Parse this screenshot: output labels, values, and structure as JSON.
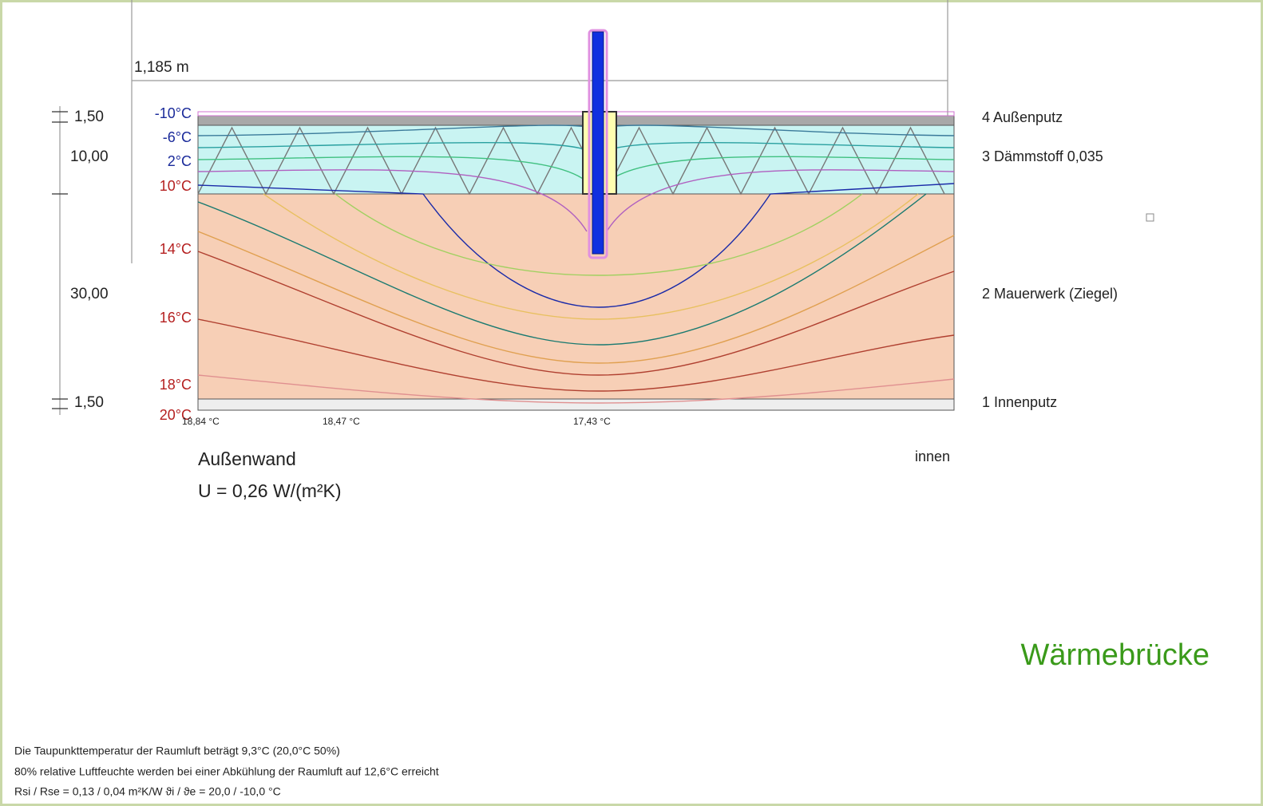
{
  "dimension": {
    "width": "1,185 m"
  },
  "layers": [
    {
      "thickness": "1,50",
      "name": "4 Außenputz"
    },
    {
      "thickness": "10,00",
      "name": "3 Dämmstoff 0,035"
    },
    {
      "thickness": "30,00",
      "name": "2 Mauerwerk (Ziegel)"
    },
    {
      "thickness": "1,50",
      "name": "1 Innenputz"
    }
  ],
  "isotherm_labels": [
    "-10°C",
    "-6°C",
    "2°C",
    "10°C",
    "14°C",
    "16°C",
    "18°C",
    "20°C"
  ],
  "surface_temperatures": [
    "18,84 °C",
    "18,47 °C",
    "17,43 °C"
  ],
  "title": "Außenwand",
  "u_value": "U = 0,26 W/(m²K)",
  "side": "innen",
  "badge": "Wärmebrücke",
  "notes": [
    "Die Taupunkttemperatur der Raumluft beträgt 9,3°C (20,0°C  50%)",
    "80% relative Luftfeuchte werden bei einer Abkühlung der Raumluft auf 12,6°C erreicht",
    "Rsi / Rse = 0,13 / 0,04 m²K/W    ϑi / ϑe = 20,0 / -10,0 °C"
  ]
}
